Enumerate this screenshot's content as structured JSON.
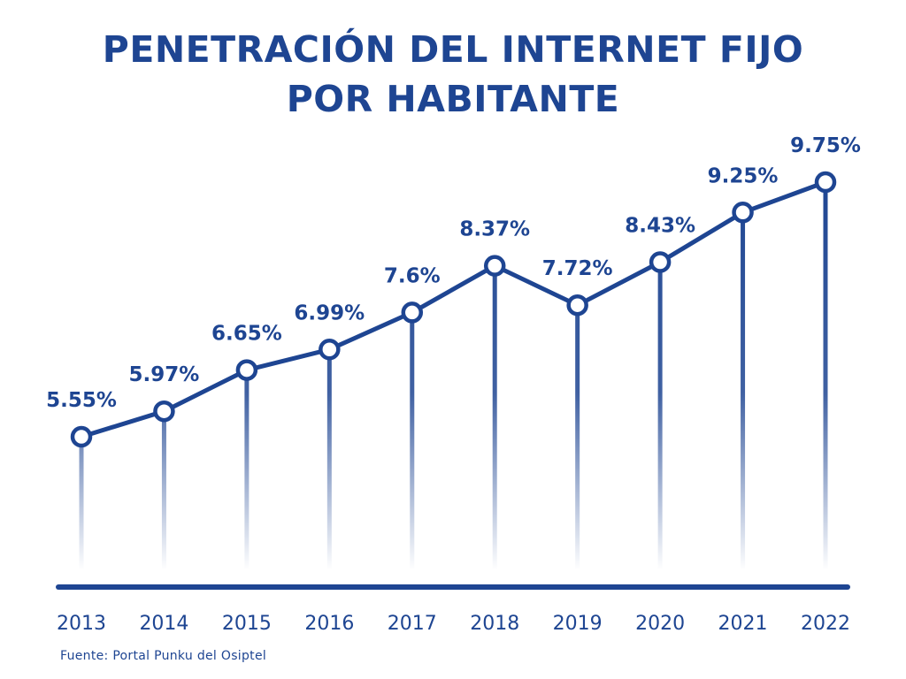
{
  "colors": {
    "accent": "#1e4592",
    "marker_fill": "#ffffff"
  },
  "chart_data": {
    "type": "line",
    "title_line1": "PENETRACIÓN DEL INTERNET FIJO",
    "title_line2": "POR HABITANTE",
    "x": [
      "2013",
      "2014",
      "2015",
      "2016",
      "2017",
      "2018",
      "2019",
      "2020",
      "2021",
      "2022"
    ],
    "values": [
      5.55,
      5.97,
      6.65,
      6.99,
      7.6,
      8.37,
      7.72,
      8.43,
      9.25,
      9.75
    ],
    "value_labels": [
      "5.55%",
      "5.97%",
      "6.65%",
      "6.99%",
      "7.6%",
      "8.37%",
      "7.72%",
      "8.43%",
      "9.25%",
      "9.75%"
    ],
    "unit": "%",
    "grid": false,
    "legend": "none",
    "source": "Fuente: Portal Punku del Osiptel"
  }
}
